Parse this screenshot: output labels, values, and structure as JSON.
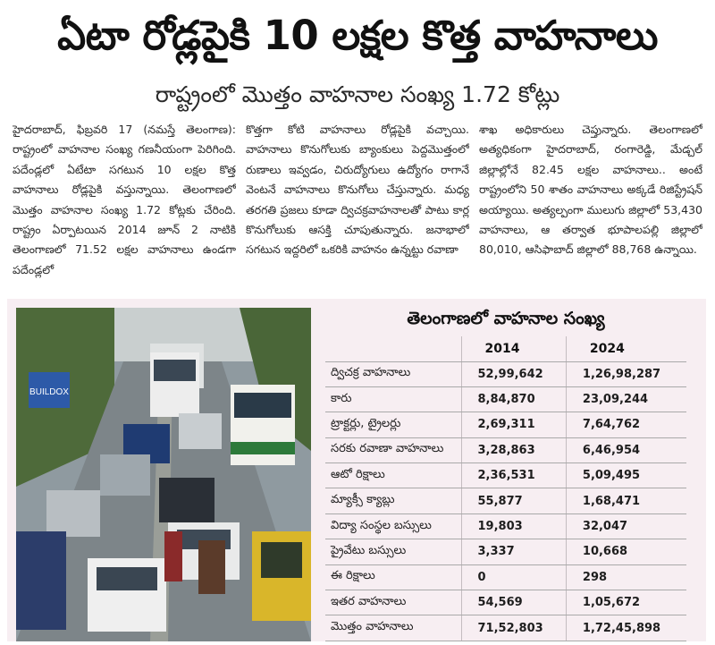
{
  "headline": "ఏటా రోడ్లపైకి 10 లక్షల కొత్త వాహనాలు",
  "subhead": "రాష్ట్రంలో మొత్తం వాహనాల సంఖ్య 1.72 కోట్లు",
  "article": {
    "col1": "హైదరాబాద్, ఫిబ్రవరి 17 (నమస్తే తెలంగాణ): రాష్ట్రంలో వాహనాల సంఖ్య గణనీయంగా పెరిగింది. పదేండ్లలో ఏటేటా సగటున 10 లక్షల కొత్త వాహనాలు రోడ్లపైకి వస్తున్నాయి. తెలంగాణలో మొత్తం వాహనాల సంఖ్య 1.72 కోట్లకు చేరింది. రాష్ట్రం ఏర్పాటయిన 2014 జూన్ 2 నాటికి తెలంగాణలో 71.52 లక్షల వాహనాలు ఉండగా పదేండ్లలో",
    "col2": "కొత్తగా కోటి వాహనాలు రోడ్లపైకి వచ్చాయి. వాహనాలు కొనుగోలుకు బ్యాంకులు పెద్దమొత్తంలో రుణాలు ఇవ్వడం, చిరుద్యోగులు ఉద్యోగం రాగానే వెంటనే వాహనాలు కొనుగోలు చేస్తున్నారు. మధ్య తరగతి ప్రజలు కూడా ద్విచక్రవాహనాలతో పాటు కార్ల కొనుగోలుకు ఆసక్తి చూపుతున్నారు. జనాభాలో సగటున ఇద్దరిలో ఒకరికి వాహనం ఉన్నట్టు రవాణా",
    "col3": "శాఖ అధికారులు చెప్తున్నారు. తెలంగాణలో అత్యధికంగా హైదరాబాద్, రంగారెడ్డి, మేడ్చల్ జిల్లాల్లోనే 82.45 లక్షల వాహనాలు.. అంటే రాష్ట్రంలోని 50 శాతం వాహనాలు అక్కడే రిజిస్ట్రేషన్ అయ్యాయి. అత్యల్పంగా ములుగు జిల్లాలో 53,430 వాహనాలు, ఆ తర్వాత భూపాలపల్లి జిల్లాలో 80,010, ఆసిఫాబాద్ జిల్లాలో 88,768 ఉన్నాయి."
  },
  "photo": {
    "sign_text": "BUILDOX",
    "description_icon": "traffic-photo"
  },
  "table": {
    "title": "తెలంగాణలో వాహనాల సంఖ్య",
    "col_2014": "2014",
    "col_2024": "2024",
    "rows": [
      {
        "label": "ద్విచక్ర వాహనాలు",
        "v2014": "52,99,642",
        "v2024": "1,26,98,287"
      },
      {
        "label": "కారు",
        "v2014": "8,84,870",
        "v2024": "23,09,244"
      },
      {
        "label": "ట్రాక్టర్లు, ట్రైలర్లు",
        "v2014": "2,69,311",
        "v2024": "7,64,762"
      },
      {
        "label": "సరకు రవాణా వాహనాలు",
        "v2014": "3,28,863",
        "v2024": "6,46,954"
      },
      {
        "label": "ఆటో రిక్షాలు",
        "v2014": "2,36,531",
        "v2024": "5,09,495"
      },
      {
        "label": "మ్యాక్సీ క్యాబ్లు",
        "v2014": "55,877",
        "v2024": "1,68,471"
      },
      {
        "label": "విద్యా సంస్థల బస్సులు",
        "v2014": "19,803",
        "v2024": "32,047"
      },
      {
        "label": "ప్రైవేటు బస్సులు",
        "v2014": "3,337",
        "v2024": "10,668"
      },
      {
        "label": "ఈ రిక్షాలు",
        "v2014": "0",
        "v2024": "298"
      },
      {
        "label": "ఇతర వాహనాలు",
        "v2014": "54,569",
        "v2024": "1,05,672"
      },
      {
        "label": "మొత్తం వాహనాలు",
        "v2014": "71,52,803",
        "v2024": "1,72,45,898"
      }
    ]
  },
  "colors": {
    "panel_bg": "#f7eef2",
    "rule": "#a9a9a9"
  }
}
